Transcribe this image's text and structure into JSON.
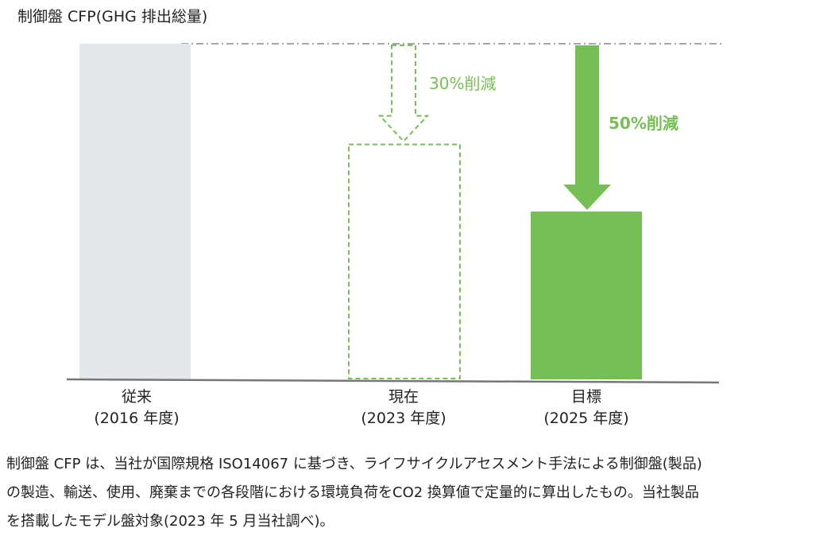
{
  "chart_data": {
    "type": "bar",
    "title": "制御盤 CFP(GHG 排出総量)",
    "categories": [
      {
        "name": "従来",
        "period": "(2016 年度)"
      },
      {
        "name": "現在",
        "period": "(2023 年度)"
      },
      {
        "name": "目標",
        "period": "(2025 年度)"
      }
    ],
    "values": [
      100,
      70,
      50
    ],
    "styles": [
      "solid-gray",
      "dashed-outline",
      "solid-green"
    ],
    "reductions": [
      {
        "label": "30%削減",
        "style": "dashed"
      },
      {
        "label": "50%削減",
        "style": "solid"
      }
    ],
    "ylim": [
      0,
      100
    ],
    "colors": {
      "baseline": "#e5e8eb",
      "accent": "#76bf55",
      "axis": "#777777",
      "reference_line": "#888888"
    },
    "grid": false
  },
  "note": {
    "lines": [
      "制御盤 CFP は、当社が国際規格 ISO14067 に基づき、ライフサイクルアセスメント手法による制御盤(製品)",
      "の製造、輸送、使用、廃棄までの各段階における環境負荷をCO2 換算値で定量的に算出したもの。当社製品",
      "を搭載したモデル盤対象(2023 年 5 月当社調べ)。"
    ]
  }
}
